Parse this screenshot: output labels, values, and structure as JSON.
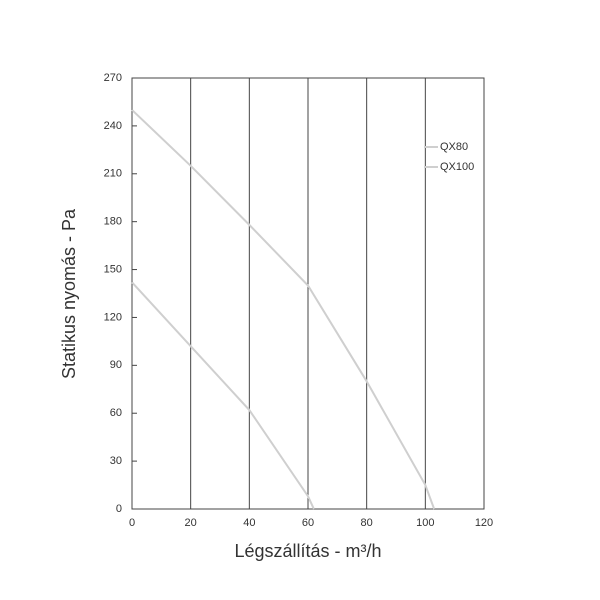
{
  "chart_data": {
    "type": "line",
    "xlabel": "Légszállítás - m³/h",
    "ylabel": "Statikus nyomás - Pa",
    "series": [
      {
        "name": "QX80",
        "color": "#cfcfcf",
        "x": [
          0,
          20,
          40,
          60,
          62
        ],
        "values": [
          142,
          102,
          62,
          8,
          0
        ]
      },
      {
        "name": "QX100",
        "color": "#cfcfcf",
        "x": [
          0,
          20,
          40,
          60,
          80,
          100,
          103
        ],
        "values": [
          250,
          215,
          178,
          140,
          80,
          15,
          0
        ]
      }
    ],
    "xlim": [
      0,
      120
    ],
    "xticks": [
      0,
      20,
      40,
      60,
      80,
      100,
      120
    ],
    "ylim": [
      0,
      270
    ],
    "yticks": [
      0,
      30,
      60,
      90,
      120,
      150,
      180,
      210,
      240,
      270
    ],
    "grid": "x",
    "legend": "right"
  }
}
